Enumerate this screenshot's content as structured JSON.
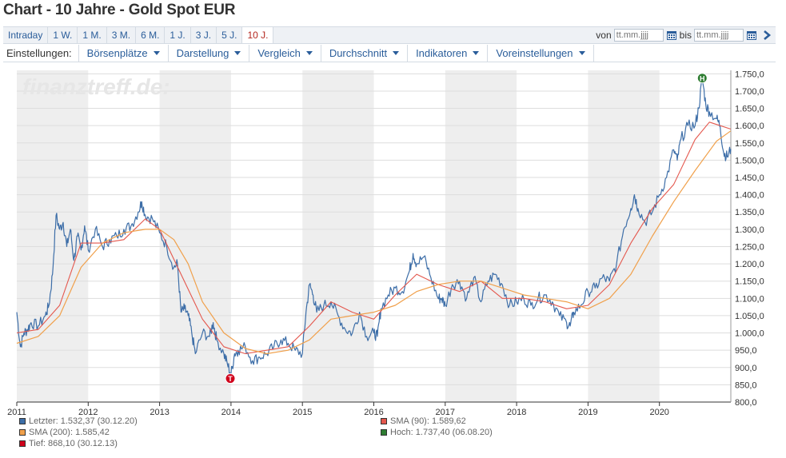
{
  "title": "Chart - 10 Jahre - Gold Spot EUR",
  "ranges": [
    "Intraday",
    "1 W.",
    "1 M.",
    "3 M.",
    "6 M.",
    "1 J.",
    "3 J.",
    "5 J.",
    "10 J."
  ],
  "active_range": "10 J.",
  "date_range": {
    "from_label": "von",
    "to_label": "bis",
    "placeholder": "tt.mm.jjjj",
    "calendar_icon": "calendar-icon",
    "next_icon": "chevron-right-icon"
  },
  "settings": {
    "label": "Einstellungen:",
    "menus": [
      "Börsenplätze",
      "Darstellung",
      "Vergleich",
      "Durchschnitt",
      "Indikatoren",
      "Voreinstellungen"
    ]
  },
  "watermark": "finanztreff.de:",
  "colors": {
    "price": "#3d6ea8",
    "sma90": "#e4574d",
    "sma200": "#f0a04b",
    "low": "#d0021b",
    "high": "#2e7d32",
    "band": "#eeeeee"
  },
  "chart_data": {
    "type": "line",
    "x_ticks": [
      "2011",
      "2012",
      "2013",
      "2014",
      "2015",
      "2016",
      "2017",
      "2018",
      "2019",
      "2020"
    ],
    "y_ticks": [
      "800,0",
      "850,0",
      "900,0",
      "950,0",
      "1.000,0",
      "1.050,0",
      "1.100,0",
      "1.150,0",
      "1.200,0",
      "1.250,0",
      "1.300,0",
      "1.350,0",
      "1.400,0",
      "1.450,0",
      "1.500,0",
      "1.550,0",
      "1.600,0",
      "1.650,0",
      "1.700,0",
      "1.750,0"
    ],
    "ylim": [
      800,
      1760
    ],
    "xlim": [
      2011.0,
      2021.0
    ],
    "grid": true,
    "series": [
      {
        "name": "Letzter",
        "x": [
          2011.0,
          2011.05,
          2011.1,
          2011.15,
          2011.2,
          2011.3,
          2011.4,
          2011.45,
          2011.5,
          2011.55,
          2011.6,
          2011.65,
          2011.7,
          2011.75,
          2011.8,
          2011.85,
          2011.9,
          2011.95,
          2012.0,
          2012.1,
          2012.2,
          2012.3,
          2012.4,
          2012.5,
          2012.6,
          2012.7,
          2012.75,
          2012.8,
          2012.9,
          2013.0,
          2013.1,
          2013.2,
          2013.25,
          2013.3,
          2013.35,
          2013.4,
          2013.45,
          2013.5,
          2013.6,
          2013.7,
          2013.75,
          2013.8,
          2013.9,
          2013.95,
          2014.0,
          2014.05,
          2014.1,
          2014.2,
          2014.3,
          2014.4,
          2014.5,
          2014.6,
          2014.7,
          2014.8,
          2014.9,
          2015.0,
          2015.05,
          2015.1,
          2015.15,
          2015.2,
          2015.3,
          2015.4,
          2015.5,
          2015.6,
          2015.7,
          2015.8,
          2015.9,
          2016.0,
          2016.05,
          2016.1,
          2016.2,
          2016.3,
          2016.4,
          2016.5,
          2016.55,
          2016.6,
          2016.7,
          2016.8,
          2016.9,
          2016.95,
          2017.0,
          2017.1,
          2017.2,
          2017.3,
          2017.4,
          2017.5,
          2017.6,
          2017.7,
          2017.8,
          2017.9,
          2018.0,
          2018.1,
          2018.2,
          2018.3,
          2018.4,
          2018.5,
          2018.6,
          2018.7,
          2018.75,
          2018.8,
          2018.9,
          2019.0,
          2019.1,
          2019.2,
          2019.3,
          2019.4,
          2019.5,
          2019.6,
          2019.65,
          2019.7,
          2019.8,
          2019.9,
          2020.0,
          2020.1,
          2020.2,
          2020.25,
          2020.3,
          2020.4,
          2020.5,
          2020.55,
          2020.6,
          2020.65,
          2020.7,
          2020.8,
          2020.85,
          2020.9,
          2020.95,
          2021.0
        ],
        "values": [
          1060,
          960,
          1000,
          1010,
          1030,
          1020,
          1050,
          1080,
          1170,
          1340,
          1300,
          1320,
          1250,
          1300,
          1210,
          1280,
          1240,
          1310,
          1240,
          1300,
          1250,
          1270,
          1280,
          1300,
          1310,
          1350,
          1380,
          1340,
          1330,
          1290,
          1250,
          1190,
          1200,
          1060,
          1070,
          1050,
          1000,
          940,
          1000,
          990,
          1030,
          980,
          940,
          910,
          880,
          940,
          950,
          960,
          920,
          930,
          940,
          960,
          980,
          970,
          950,
          940,
          1060,
          1140,
          1110,
          1060,
          1080,
          1090,
          1050,
          1010,
          1000,
          1060,
          990,
          1000,
          990,
          1070,
          1110,
          1130,
          1120,
          1180,
          1230,
          1200,
          1220,
          1160,
          1100,
          1100,
          1080,
          1140,
          1150,
          1100,
          1160,
          1090,
          1150,
          1170,
          1140,
          1080,
          1090,
          1100,
          1080,
          1100,
          1110,
          1090,
          1050,
          1030,
          1020,
          1060,
          1080,
          1120,
          1130,
          1160,
          1150,
          1200,
          1300,
          1360,
          1400,
          1360,
          1320,
          1350,
          1400,
          1450,
          1530,
          1500,
          1560,
          1600,
          1600,
          1650,
          1737,
          1660,
          1640,
          1620,
          1600,
          1520,
          1510,
          1532
        ]
      },
      {
        "name": "SMA (90)",
        "x": [
          2011.0,
          2011.3,
          2011.6,
          2011.9,
          2012.2,
          2012.5,
          2012.8,
          2013.0,
          2013.3,
          2013.6,
          2013.9,
          2014.2,
          2014.5,
          2014.8,
          2015.1,
          2015.4,
          2015.7,
          2016.0,
          2016.3,
          2016.6,
          2016.9,
          2017.2,
          2017.5,
          2017.8,
          2018.1,
          2018.4,
          2018.7,
          2019.0,
          2019.3,
          2019.6,
          2019.9,
          2020.2,
          2020.5,
          2020.7,
          2021.0
        ],
        "values": [
          1000,
          1010,
          1080,
          1260,
          1260,
          1270,
          1330,
          1300,
          1170,
          1040,
          960,
          940,
          950,
          960,
          1020,
          1090,
          1060,
          1040,
          1110,
          1170,
          1140,
          1120,
          1150,
          1100,
          1100,
          1090,
          1070,
          1080,
          1140,
          1260,
          1360,
          1430,
          1560,
          1610,
          1590
        ]
      },
      {
        "name": "SMA (200)",
        "x": [
          2011.0,
          2011.3,
          2011.6,
          2011.9,
          2012.2,
          2012.5,
          2012.8,
          2013.0,
          2013.2,
          2013.4,
          2013.6,
          2013.9,
          2014.2,
          2014.5,
          2014.8,
          2015.1,
          2015.4,
          2015.7,
          2016.0,
          2016.3,
          2016.6,
          2016.9,
          2017.2,
          2017.5,
          2017.8,
          2018.1,
          2018.4,
          2018.7,
          2019.0,
          2019.3,
          2019.6,
          2019.9,
          2020.2,
          2020.5,
          2020.8,
          2021.0
        ],
        "values": [
          970,
          990,
          1050,
          1190,
          1260,
          1290,
          1300,
          1300,
          1270,
          1200,
          1090,
          1000,
          955,
          940,
          950,
          980,
          1040,
          1050,
          1060,
          1080,
          1120,
          1140,
          1150,
          1150,
          1130,
          1110,
          1100,
          1090,
          1070,
          1100,
          1170,
          1280,
          1380,
          1470,
          1555,
          1585
        ]
      }
    ],
    "low_marker": {
      "x": 2013.99,
      "value": 868.1,
      "label": "T"
    },
    "high_marker": {
      "x": 2020.6,
      "value": 1737.4,
      "label": "H"
    },
    "legend": [
      {
        "text": "Letzter: 1.532,37 (30.12.20)",
        "color": "#3d6ea8"
      },
      {
        "text": "SMA (90): 1.589,62",
        "color": "#e4574d"
      },
      {
        "text": "SMA (200): 1.585,42",
        "color": "#f0a04b"
      },
      {
        "text": "Hoch: 1.737,40 (06.08.20)",
        "color": "#2e7d32"
      },
      {
        "text": "Tief: 868,10 (30.12.13)",
        "color": "#d0021b"
      }
    ]
  }
}
